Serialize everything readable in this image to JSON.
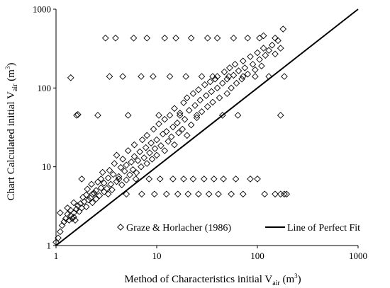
{
  "chart_data": {
    "type": "scatter",
    "scale": {
      "x": "log",
      "y": "log"
    },
    "xlim": [
      1,
      1000
    ],
    "ylim": [
      1,
      1000
    ],
    "grid": false,
    "legend_position": "bottom-right",
    "x_ticks": [
      "1",
      "10",
      "100",
      "1000"
    ],
    "y_ticks": [
      "1",
      "10",
      "100",
      "1000"
    ],
    "xlabel": {
      "text": "Method of Characteristics initial V",
      "sub": "air",
      "unit_open": " (m",
      "unit_sup": "3",
      "unit_close": ")"
    },
    "ylabel": {
      "text": "Chart Calculated initial V",
      "sub": "air",
      "unit_open": " (m",
      "unit_sup": "3",
      "unit_close": ")"
    },
    "series": [
      {
        "name": "Graze & Horlacher (1986)",
        "marker": "diamond",
        "color": "#000000",
        "points": [
          [
            1.0,
            1.1
          ],
          [
            1.05,
            1.25
          ],
          [
            1.1,
            1.5
          ],
          [
            1.1,
            2.6
          ],
          [
            1.15,
            1.8
          ],
          [
            1.2,
            2.0
          ],
          [
            1.25,
            2.2
          ],
          [
            1.3,
            2.5
          ],
          [
            1.3,
            3.0
          ],
          [
            1.35,
            2.1
          ],
          [
            1.4,
            2.4
          ],
          [
            1.4,
            2.8
          ],
          [
            1.45,
            2.2
          ],
          [
            1.5,
            2.3
          ],
          [
            1.5,
            2.6
          ],
          [
            1.5,
            3.5
          ],
          [
            1.55,
            2.1
          ],
          [
            1.6,
            2.9
          ],
          [
            1.65,
            3.2
          ],
          [
            1.7,
            2.7
          ],
          [
            1.75,
            3.4
          ],
          [
            1.8,
            3.0
          ],
          [
            1.85,
            4.1
          ],
          [
            1.9,
            3.6
          ],
          [
            2.0,
            3.1
          ],
          [
            2.0,
            4.4
          ],
          [
            2.05,
            5.2
          ],
          [
            2.1,
            3.8
          ],
          [
            2.2,
            4.0
          ],
          [
            2.25,
            6.0
          ],
          [
            2.3,
            3.5
          ],
          [
            2.4,
            4.6
          ],
          [
            2.5,
            5.0
          ],
          [
            2.5,
            3.9
          ],
          [
            2.6,
            6.4
          ],
          [
            2.7,
            4.3
          ],
          [
            2.8,
            5.4
          ],
          [
            2.9,
            8.5
          ],
          [
            3.0,
            4.8
          ],
          [
            3.0,
            6.2
          ],
          [
            3.2,
            5.3
          ],
          [
            3.3,
            7.2
          ],
          [
            3.4,
            9.0
          ],
          [
            3.5,
            6.0
          ],
          [
            3.6,
            5.1
          ],
          [
            3.7,
            8.0
          ],
          [
            3.8,
            11.0
          ],
          [
            4.0,
            6.5
          ],
          [
            4.0,
            14.0
          ],
          [
            4.2,
            7.5
          ],
          [
            4.4,
            9.8
          ],
          [
            4.5,
            5.9
          ],
          [
            4.6,
            12.5
          ],
          [
            4.8,
            8.8
          ],
          [
            5.0,
            6.8
          ],
          [
            5.0,
            10.5
          ],
          [
            5.2,
            16.0
          ],
          [
            5.4,
            7.9
          ],
          [
            5.6,
            11.5
          ],
          [
            5.8,
            9.2
          ],
          [
            6.0,
            13.5
          ],
          [
            6.0,
            19.0
          ],
          [
            6.3,
            8.4
          ],
          [
            6.5,
            12.0
          ],
          [
            6.8,
            15.5
          ],
          [
            7.0,
            10.0
          ],
          [
            7.2,
            22.0
          ],
          [
            7.5,
            13.0
          ],
          [
            7.8,
            17.5
          ],
          [
            8.0,
            11.0
          ],
          [
            8.0,
            25.0
          ],
          [
            8.5,
            15.0
          ],
          [
            8.8,
            20.0
          ],
          [
            9.0,
            12.5
          ],
          [
            9.3,
            30.0
          ],
          [
            9.6,
            17.0
          ],
          [
            10.0,
            14.0
          ],
          [
            10.0,
            22.0
          ],
          [
            10.5,
            35.0
          ],
          [
            11.0,
            18.5
          ],
          [
            11.5,
            26.0
          ],
          [
            12.0,
            16.0
          ],
          [
            12.0,
            40.0
          ],
          [
            12.5,
            28.0
          ],
          [
            13.0,
            21.0
          ],
          [
            13.5,
            45.0
          ],
          [
            14.0,
            24.0
          ],
          [
            14.5,
            32.0
          ],
          [
            15.0,
            19.0
          ],
          [
            15.0,
            55.0
          ],
          [
            16.0,
            36.0
          ],
          [
            16.5,
            27.0
          ],
          [
            17.0,
            48.0
          ],
          [
            18.0,
            30.0
          ],
          [
            18.5,
            65.0
          ],
          [
            19.0,
            40.0
          ],
          [
            20.0,
            25.0
          ],
          [
            20.0,
            75.0
          ],
          [
            21.0,
            52.0
          ],
          [
            22.0,
            34.0
          ],
          [
            23.0,
            85.0
          ],
          [
            24.0,
            60.0
          ],
          [
            25.0,
            42.0
          ],
          [
            26.0,
            95.0
          ],
          [
            27.0,
            70.0
          ],
          [
            28.0,
            50.0
          ],
          [
            30.0,
            110.0
          ],
          [
            31.0,
            80.0
          ],
          [
            32.0,
            58.0
          ],
          [
            34.0,
            120.0
          ],
          [
            35.0,
            90.0
          ],
          [
            36.0,
            66.0
          ],
          [
            38.0,
            130.0
          ],
          [
            40.0,
            100.0
          ],
          [
            40.0,
            140.0
          ],
          [
            42.0,
            75.0
          ],
          [
            45.0,
            115.0
          ],
          [
            47.0,
            160.0
          ],
          [
            50.0,
            85.0
          ],
          [
            50.0,
            130.0
          ],
          [
            53.0,
            180.0
          ],
          [
            55.0,
            100.0
          ],
          [
            58.0,
            145.0
          ],
          [
            60.0,
            200.0
          ],
          [
            62.0,
            115.0
          ],
          [
            65.0,
            165.0
          ],
          [
            70.0,
            130.0
          ],
          [
            72.0,
            220.0
          ],
          [
            75.0,
            180.0
          ],
          [
            80.0,
            150.0
          ],
          [
            85.0,
            250.0
          ],
          [
            90.0,
            200.0
          ],
          [
            95.0,
            170.0
          ],
          [
            100.0,
            280.0
          ],
          [
            105.0,
            230.0
          ],
          [
            110.0,
            190.0
          ],
          [
            115.0,
            320.0
          ],
          [
            120.0,
            260.0
          ],
          [
            130.0,
            300.0
          ],
          [
            140.0,
            350.0
          ],
          [
            150.0,
            270.0
          ],
          [
            160.0,
            400.0
          ],
          [
            170.0,
            320.0
          ],
          [
            180.0,
            560.0
          ],
          [
            1.4,
            135.0
          ],
          [
            1.6,
            45.0
          ],
          [
            1.65,
            46.0
          ],
          [
            2.6,
            45.0
          ],
          [
            3.1,
            430.0
          ],
          [
            3.4,
            140.0
          ],
          [
            3.9,
            430.0
          ],
          [
            4.6,
            140.0
          ],
          [
            5.2,
            45.0
          ],
          [
            5.9,
            430.0
          ],
          [
            7.0,
            140.0
          ],
          [
            8.0,
            430.0
          ],
          [
            9.2,
            140.0
          ],
          [
            10.5,
            45.0
          ],
          [
            12.0,
            430.0
          ],
          [
            13.5,
            140.0
          ],
          [
            15.5,
            430.0
          ],
          [
            17.0,
            45.0
          ],
          [
            19.5,
            140.0
          ],
          [
            22.0,
            430.0
          ],
          [
            25.0,
            45.0
          ],
          [
            28.0,
            140.0
          ],
          [
            32.0,
            430.0
          ],
          [
            36.0,
            140.0
          ],
          [
            40.0,
            430.0
          ],
          [
            45.0,
            45.0
          ],
          [
            52.0,
            140.0
          ],
          [
            58.0,
            430.0
          ],
          [
            64.0,
            45.0
          ],
          [
            72.0,
            140.0
          ],
          [
            80.0,
            430.0
          ],
          [
            95.0,
            140.0
          ],
          [
            105.0,
            430.0
          ],
          [
            115.0,
            460.0
          ],
          [
            130.0,
            140.0
          ],
          [
            150.0,
            430.0
          ],
          [
            170.0,
            45.0
          ],
          [
            185.0,
            140.0
          ],
          [
            1.8,
            7.0
          ],
          [
            2.3,
            4.5
          ],
          [
            2.8,
            7.0
          ],
          [
            3.3,
            4.5
          ],
          [
            4.2,
            7.0
          ],
          [
            5.0,
            4.5
          ],
          [
            6.2,
            7.0
          ],
          [
            7.1,
            4.5
          ],
          [
            8.4,
            7.0
          ],
          [
            9.5,
            4.5
          ],
          [
            10.8,
            7.0
          ],
          [
            12.5,
            4.5
          ],
          [
            14.5,
            7.0
          ],
          [
            16.2,
            4.5
          ],
          [
            18.5,
            7.0
          ],
          [
            20.5,
            4.5
          ],
          [
            23.0,
            7.0
          ],
          [
            26.0,
            4.5
          ],
          [
            29.5,
            7.0
          ],
          [
            33.0,
            4.5
          ],
          [
            37.0,
            7.0
          ],
          [
            41.0,
            4.5
          ],
          [
            46.0,
            7.0
          ],
          [
            55.0,
            4.5
          ],
          [
            61.0,
            7.0
          ],
          [
            72.0,
            4.5
          ],
          [
            85.0,
            7.0
          ],
          [
            100.0,
            7.0
          ],
          [
            118.0,
            4.5
          ],
          [
            150.0,
            4.5
          ],
          [
            170.0,
            4.5
          ],
          [
            185.0,
            4.5
          ],
          [
            195.0,
            4.5
          ]
        ]
      },
      {
        "name": "Line of Perfect Fit",
        "marker": "line",
        "color": "#000000",
        "points": [
          [
            1,
            1
          ],
          [
            1000,
            1000
          ]
        ]
      }
    ]
  }
}
